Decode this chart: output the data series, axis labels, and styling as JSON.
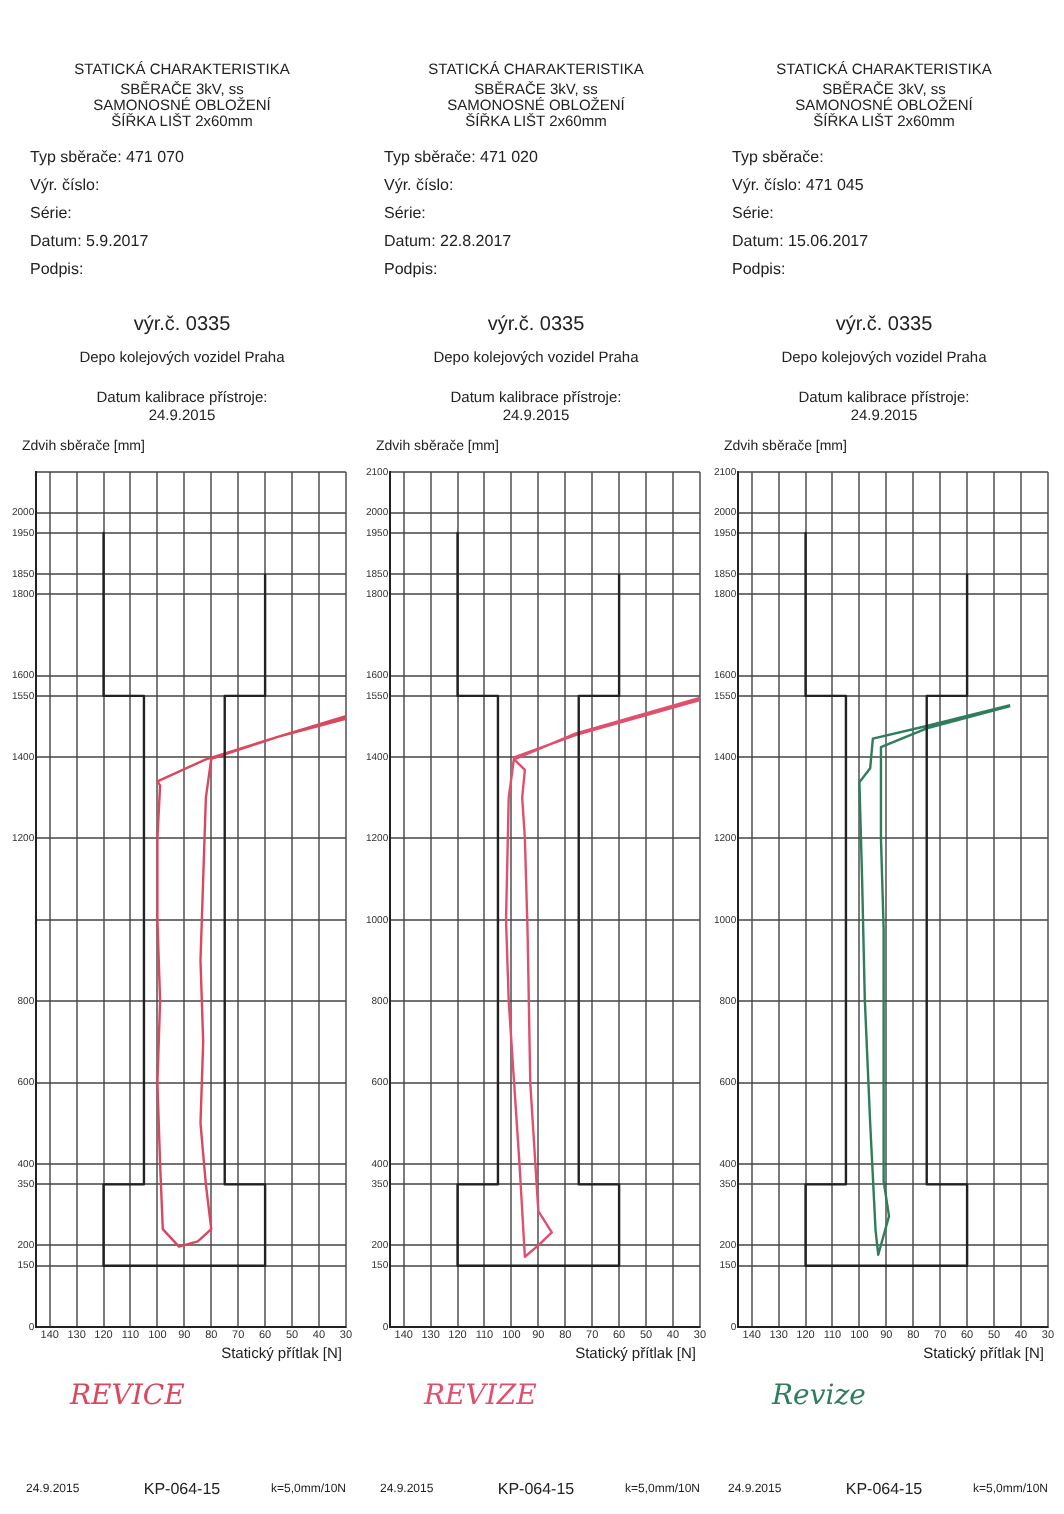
{
  "chart_data": [
    {
      "type": "line",
      "title": "STATICKÁ CHARAKTERISTIKA",
      "subtitle": "SBĚRAČE 3kV, ss\nSAMONOSNÉ OBLOŽENÍ\nŠÍŘKA LIŠT 2x60mm",
      "xlabel": "Statický přítlak [N]",
      "ylabel": "Zdvih sběrače [mm]",
      "annotations": [
        "Typ sběrače: 471 070",
        "Výr. číslo:",
        "Série:",
        "Datum: 5.9.2017",
        "Podpis:",
        "výr.č. 0335",
        "Depo kolejových vozidel Praha",
        "Datum kalibrace přístroje:",
        "24.9.2015",
        "REVICE",
        "24.9.2015",
        "KP-064-15",
        "k=5,0mm/10N"
      ],
      "xlim": [
        145,
        30
      ],
      "xticks": [
        140,
        130,
        120,
        110,
        100,
        90,
        80,
        70,
        60,
        50,
        40,
        30
      ],
      "ylim": [
        0,
        2100
      ],
      "yticks": [
        0,
        150,
        200,
        350,
        400,
        600,
        800,
        {
          "value": 1000,
          "label": null
        },
        1200,
        1400,
        1550,
        1600,
        1800,
        1850,
        1950,
        2000,
        {
          "value": 2100,
          "label": null
        }
      ],
      "grid": true,
      "marker": "none",
      "line_style": "solid",
      "series": [
        {
          "color": "#222222",
          "x": [
            120,
            120,
            105,
            105,
            120,
            120,
            60,
            60,
            75,
            75,
            60,
            60
          ],
          "values": [
            1950,
            1550,
            1550,
            350,
            350,
            150,
            150,
            350,
            350,
            1550,
            1550,
            1850
          ]
        },
        {
          "color": "#d9485f",
          "x": [
            30,
            55,
            80,
            82,
            83,
            84,
            83,
            84,
            82,
            80,
            85,
            92,
            98,
            99,
            100,
            99,
            100,
            100,
            99,
            100,
            82,
            55,
            30
          ],
          "values": [
            1500,
            1450,
            1395,
            1300,
            1100,
            900,
            700,
            500,
            350,
            240,
            210,
            197,
            240,
            400,
            600,
            800,
            1000,
            1200,
            1330,
            1340,
            1394,
            1450,
            1494
          ]
        }
      ]
    },
    {
      "type": "line",
      "title": "STATICKÁ CHARAKTERISTIKA",
      "subtitle": "SBĚRAČE 3kV, ss\nSAMONOSNÉ OBLOŽENÍ\nŠÍŘKA LIŠT 2x60mm",
      "xlabel": "Statický přítlak [N]",
      "ylabel": "Zdvih sběrače [mm]",
      "annotations": [
        "Typ sběrače: 471 020",
        "Výr. číslo:",
        "Série:",
        "Datum: 22.8.2017",
        "Podpis:",
        "výr.č. 0335",
        "Depo kolejových vozidel Praha",
        "Datum kalibrace přístroje:",
        "24.9.2015",
        "REVIZE",
        "24.9.2015",
        "KP-064-15",
        "k=5,0mm/10N"
      ],
      "xlim": [
        145,
        30
      ],
      "xticks": [
        140,
        130,
        120,
        110,
        100,
        90,
        80,
        70,
        60,
        50,
        40,
        30
      ],
      "ylim": [
        0,
        2100
      ],
      "yticks": [
        0,
        150,
        200,
        350,
        400,
        600,
        800,
        1000,
        1200,
        1400,
        1550,
        1600,
        1800,
        1850,
        1950,
        2000,
        2100
      ],
      "grid": true,
      "marker": "none",
      "line_style": "solid",
      "series": [
        {
          "color": "#222222",
          "x": [
            120,
            120,
            105,
            105,
            120,
            120,
            60,
            60,
            75,
            75,
            60,
            60
          ],
          "values": [
            1950,
            1550,
            1550,
            350,
            350,
            150,
            150,
            350,
            350,
            1550,
            1550,
            1850
          ]
        },
        {
          "color": "#e0506e",
          "x": [
            30,
            76,
            99,
            101,
            102,
            101,
            99,
            97,
            95,
            90,
            85,
            90,
            93,
            94,
            95,
            96,
            95,
            99,
            76,
            30
          ],
          "values": [
            1540,
            1454,
            1399,
            1300,
            1000,
            800,
            600,
            400,
            172,
            200,
            232,
            284,
            600,
            972,
            1200,
            1300,
            1368,
            1394,
            1458,
            1545
          ]
        }
      ]
    },
    {
      "type": "line",
      "title": "STATICKÁ CHARAKTERISTIKA",
      "subtitle": "SBĚRAČE 3kV, ss\nSAMONOSNÉ OBLOŽENÍ\nŠÍŘKA LIŠT 2x60mm",
      "xlabel": "Statický přítlak [N]",
      "ylabel": "Zdvih sběrače [mm]",
      "annotations": [
        "Typ sběrače:",
        "Výr. číslo: 471 045",
        "Série:",
        "Datum: 15.06.2017",
        "Podpis:",
        "výr.č. 0335",
        "Depo kolejových vozidel Praha",
        "Datum kalibrace přístroje:",
        "24.9.2015",
        "Revize",
        "24.9.2015",
        "KP-064-15",
        "k=5,0mm/10N"
      ],
      "xlim": [
        145,
        30
      ],
      "xticks": [
        140,
        130,
        120,
        110,
        100,
        90,
        80,
        70,
        60,
        50,
        40,
        30
      ],
      "ylim": [
        0,
        2100
      ],
      "yticks": [
        0,
        150,
        200,
        350,
        400,
        600,
        800,
        1000,
        1200,
        1400,
        1550,
        1600,
        1800,
        1850,
        1950,
        2000,
        2100
      ],
      "grid": true,
      "marker": "none",
      "line_style": "solid",
      "series": [
        {
          "color": "#222222",
          "x": [
            120,
            120,
            105,
            105,
            120,
            120,
            60,
            60,
            75,
            75,
            60,
            60
          ],
          "values": [
            1950,
            1550,
            1550,
            350,
            350,
            150,
            150,
            350,
            350,
            1550,
            1550,
            1850
          ]
        },
        {
          "color": "#2e7d5b",
          "x": [
            44,
            75,
            95,
            96,
            100,
            99,
            98,
            96,
            94,
            93,
            89,
            91,
            91,
            92,
            92,
            75,
            44
          ],
          "values": [
            1527,
            1476,
            1445,
            1372,
            1338,
            1100,
            805,
            500,
            237,
            177,
            272,
            358,
            977,
            1200,
            1424,
            1470,
            1525
          ]
        }
      ]
    }
  ]
}
